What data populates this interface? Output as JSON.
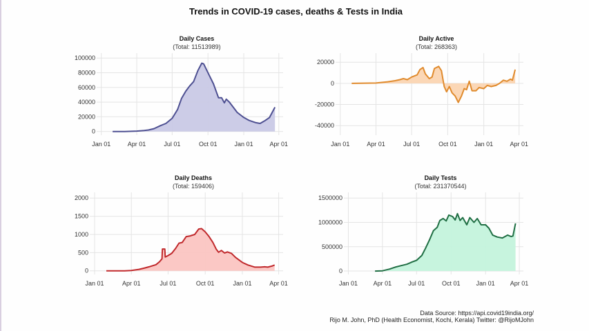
{
  "title": "Trends in COVID-19 cases, deaths & Tests in India",
  "footer": {
    "source": "Data Source: https://api.covid19india.org/",
    "credit": "Rijo M. John, PhD (Health Economist, Kochi, Kerala) Twitter: @RijoMJohn"
  },
  "chart_data": [
    {
      "id": "cases",
      "type": "area",
      "title": "Daily Cases",
      "subtitle": "(Total: 11513989)",
      "xlabel": "",
      "ylabel": "",
      "xticks": [
        "Jan 01",
        "Apr 01",
        "Jul 01",
        "Oct 01",
        "Jan 01",
        "Apr 01"
      ],
      "xtick_dates": [
        "2020-01-01",
        "2020-04-01",
        "2020-07-01",
        "2020-10-01",
        "2021-01-01",
        "2021-04-01"
      ],
      "xlim": [
        "2019-12-20",
        "2021-04-12"
      ],
      "yticks": [
        0,
        20000,
        40000,
        60000,
        80000,
        100000
      ],
      "ylim": [
        -5000,
        103000
      ],
      "grid": true,
      "line_color": "#4d4f91",
      "fill_color": "#c9c9e6",
      "series": [
        [
          "2020-01-30",
          0
        ],
        [
          "2020-03-01",
          10
        ],
        [
          "2020-04-01",
          500
        ],
        [
          "2020-04-20",
          1300
        ],
        [
          "2020-05-01",
          2000
        ],
        [
          "2020-05-15",
          3800
        ],
        [
          "2020-06-01",
          8000
        ],
        [
          "2020-06-15",
          11000
        ],
        [
          "2020-07-01",
          18000
        ],
        [
          "2020-07-15",
          30000
        ],
        [
          "2020-07-25",
          45000
        ],
        [
          "2020-08-05",
          55000
        ],
        [
          "2020-08-15",
          62000
        ],
        [
          "2020-08-25",
          68000
        ],
        [
          "2020-09-05",
          83000
        ],
        [
          "2020-09-15",
          93000
        ],
        [
          "2020-09-20",
          92000
        ],
        [
          "2020-10-01",
          80000
        ],
        [
          "2020-10-15",
          65000
        ],
        [
          "2020-10-28",
          46000
        ],
        [
          "2020-11-05",
          46000
        ],
        [
          "2020-11-12",
          39000
        ],
        [
          "2020-11-17",
          44000
        ],
        [
          "2020-11-25",
          40000
        ],
        [
          "2020-12-05",
          33000
        ],
        [
          "2020-12-15",
          26000
        ],
        [
          "2021-01-01",
          19000
        ],
        [
          "2021-01-15",
          15000
        ],
        [
          "2021-02-01",
          12000
        ],
        [
          "2021-02-12",
          11000
        ],
        [
          "2021-02-25",
          15000
        ],
        [
          "2021-03-08",
          19000
        ],
        [
          "2021-03-15",
          26000
        ],
        [
          "2021-03-22",
          33000
        ]
      ]
    },
    {
      "id": "active",
      "type": "area",
      "title": "Daily Active",
      "subtitle": "(Total: 268363)",
      "xlabel": "",
      "ylabel": "",
      "xticks": [
        "Jan 01",
        "Apr 01",
        "Jul 01",
        "Oct 01",
        "Jan 01",
        "Apr 01"
      ],
      "xtick_dates": [
        "2020-01-01",
        "2020-04-01",
        "2020-07-01",
        "2020-10-01",
        "2021-01-01",
        "2021-04-01"
      ],
      "xlim": [
        "2019-12-20",
        "2021-04-12"
      ],
      "yticks": [
        -40000,
        -20000,
        0,
        20000
      ],
      "ylim": [
        -49000,
        26000
      ],
      "grid": true,
      "line_color": "#e08a2c",
      "fill_color": "#fbd5b2",
      "series": [
        [
          "2020-01-30",
          0
        ],
        [
          "2020-04-01",
          300
        ],
        [
          "2020-05-01",
          1500
        ],
        [
          "2020-05-20",
          2500
        ],
        [
          "2020-06-01",
          3500
        ],
        [
          "2020-06-10",
          4500
        ],
        [
          "2020-06-20",
          3500
        ],
        [
          "2020-07-01",
          6000
        ],
        [
          "2020-07-15",
          8000
        ],
        [
          "2020-07-22",
          13000
        ],
        [
          "2020-07-30",
          15000
        ],
        [
          "2020-08-05",
          9000
        ],
        [
          "2020-08-15",
          4500
        ],
        [
          "2020-08-22",
          6000
        ],
        [
          "2020-08-28",
          14000
        ],
        [
          "2020-09-08",
          16000
        ],
        [
          "2020-09-15",
          12000
        ],
        [
          "2020-09-22",
          -3000
        ],
        [
          "2020-09-28",
          -8000
        ],
        [
          "2020-10-05",
          -3000
        ],
        [
          "2020-10-12",
          -9000
        ],
        [
          "2020-10-20",
          -12000
        ],
        [
          "2020-10-28",
          -18000
        ],
        [
          "2020-11-05",
          -12000
        ],
        [
          "2020-11-12",
          -5000
        ],
        [
          "2020-11-18",
          -6000
        ],
        [
          "2020-11-25",
          2000
        ],
        [
          "2020-12-02",
          -7000
        ],
        [
          "2020-12-12",
          -7000
        ],
        [
          "2020-12-20",
          -4000
        ],
        [
          "2021-01-01",
          -5000
        ],
        [
          "2021-01-10",
          -2000
        ],
        [
          "2021-01-20",
          -3000
        ],
        [
          "2021-02-01",
          -2000
        ],
        [
          "2021-02-10",
          0
        ],
        [
          "2021-02-20",
          3000
        ],
        [
          "2021-03-01",
          2000
        ],
        [
          "2021-03-10",
          4000
        ],
        [
          "2021-03-15",
          3000
        ],
        [
          "2021-03-22",
          13000
        ]
      ]
    },
    {
      "id": "deaths",
      "type": "area",
      "title": "Daily Deaths",
      "subtitle": "(Total: 159406)",
      "xlabel": "",
      "ylabel": "",
      "xticks": [
        "Jan 01",
        "Apr 01",
        "Jul 01",
        "Oct 01",
        "Jan 01",
        "Apr 01"
      ],
      "xtick_dates": [
        "2020-01-01",
        "2020-04-01",
        "2020-07-01",
        "2020-10-01",
        "2021-01-01",
        "2021-04-01"
      ],
      "xlim": [
        "2019-12-20",
        "2021-04-12"
      ],
      "yticks": [
        0,
        500,
        1000,
        1500,
        2000
      ],
      "ylim": [
        -100,
        2080
      ],
      "grid": true,
      "line_color": "#c0282b",
      "fill_color": "#fbc5c2",
      "series": [
        [
          "2020-01-30",
          0
        ],
        [
          "2020-03-15",
          1
        ],
        [
          "2020-04-01",
          10
        ],
        [
          "2020-04-20",
          40
        ],
        [
          "2020-05-05",
          80
        ],
        [
          "2020-05-15",
          110
        ],
        [
          "2020-06-01",
          170
        ],
        [
          "2020-06-10",
          250
        ],
        [
          "2020-06-16",
          330
        ],
        [
          "2020-06-17",
          600
        ],
        [
          "2020-06-23",
          600
        ],
        [
          "2020-06-24",
          380
        ],
        [
          "2020-07-01",
          420
        ],
        [
          "2020-07-10",
          480
        ],
        [
          "2020-07-20",
          620
        ],
        [
          "2020-07-28",
          760
        ],
        [
          "2020-08-05",
          780
        ],
        [
          "2020-08-15",
          940
        ],
        [
          "2020-08-25",
          960
        ],
        [
          "2020-09-05",
          1000
        ],
        [
          "2020-09-15",
          1150
        ],
        [
          "2020-09-22",
          1160
        ],
        [
          "2020-10-01",
          1070
        ],
        [
          "2020-10-10",
          950
        ],
        [
          "2020-10-20",
          780
        ],
        [
          "2020-10-28",
          600
        ],
        [
          "2020-11-03",
          510
        ],
        [
          "2020-11-10",
          560
        ],
        [
          "2020-11-18",
          490
        ],
        [
          "2020-11-25",
          520
        ],
        [
          "2020-12-05",
          480
        ],
        [
          "2020-12-15",
          370
        ],
        [
          "2021-01-01",
          230
        ],
        [
          "2021-01-15",
          160
        ],
        [
          "2021-02-01",
          100
        ],
        [
          "2021-02-15",
          100
        ],
        [
          "2021-02-25",
          110
        ],
        [
          "2021-03-05",
          100
        ],
        [
          "2021-03-15",
          130
        ],
        [
          "2021-03-22",
          160
        ]
      ]
    },
    {
      "id": "tests",
      "type": "area",
      "title": "Daily Tests",
      "subtitle": "(Total: 231370544)",
      "xlabel": "",
      "ylabel": "",
      "xticks": [
        "Jan 01",
        "Apr 01",
        "Jul 01",
        "Oct 01",
        "Jan 01",
        "Apr 01"
      ],
      "xtick_dates": [
        "2020-01-01",
        "2020-04-01",
        "2020-07-01",
        "2020-10-01",
        "2021-01-01",
        "2021-04-01"
      ],
      "xlim": [
        "2019-12-20",
        "2021-04-12"
      ],
      "yticks": [
        0,
        500000,
        1000000,
        1500000
      ],
      "ylim": [
        -70000,
        1560000
      ],
      "grid": true,
      "line_color": "#1f6e43",
      "fill_color": "#c4f3dc",
      "series": [
        [
          "2020-03-12",
          0
        ],
        [
          "2020-04-01",
          5000
        ],
        [
          "2020-04-20",
          40000
        ],
        [
          "2020-05-05",
          80000
        ],
        [
          "2020-05-20",
          110000
        ],
        [
          "2020-06-05",
          140000
        ],
        [
          "2020-06-20",
          190000
        ],
        [
          "2020-07-01",
          220000
        ],
        [
          "2020-07-15",
          320000
        ],
        [
          "2020-07-25",
          470000
        ],
        [
          "2020-08-05",
          650000
        ],
        [
          "2020-08-15",
          830000
        ],
        [
          "2020-08-25",
          900000
        ],
        [
          "2020-09-01",
          1040000
        ],
        [
          "2020-09-10",
          1080000
        ],
        [
          "2020-09-18",
          1030000
        ],
        [
          "2020-09-25",
          1150000
        ],
        [
          "2020-10-05",
          1120000
        ],
        [
          "2020-10-12",
          1050000
        ],
        [
          "2020-10-18",
          1180000
        ],
        [
          "2020-10-25",
          1040000
        ],
        [
          "2020-11-01",
          1100000
        ],
        [
          "2020-11-12",
          950000
        ],
        [
          "2020-11-20",
          1100000
        ],
        [
          "2020-12-01",
          1000000
        ],
        [
          "2020-12-10",
          1080000
        ],
        [
          "2020-12-20",
          950000
        ],
        [
          "2021-01-01",
          950000
        ],
        [
          "2021-01-10",
          880000
        ],
        [
          "2021-01-20",
          740000
        ],
        [
          "2021-02-01",
          700000
        ],
        [
          "2021-02-15",
          680000
        ],
        [
          "2021-03-01",
          740000
        ],
        [
          "2021-03-10",
          710000
        ],
        [
          "2021-03-15",
          720000
        ],
        [
          "2021-03-22",
          980000
        ]
      ]
    }
  ]
}
